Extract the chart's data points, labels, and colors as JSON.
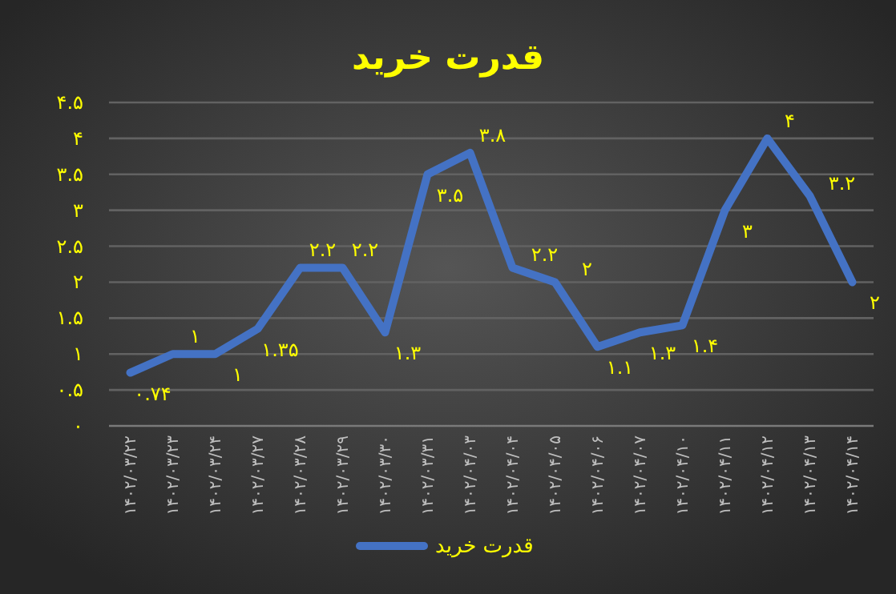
{
  "chart_data": {
    "type": "line",
    "title": "قدرت خرید",
    "categories": [
      "۱۴۰۲/۰۳/۲۲",
      "۱۴۰۲/۰۳/۲۳",
      "۱۴۰۲/۰۳/۲۴",
      "۱۴۰۲/۰۳/۲۷",
      "۱۴۰۲/۰۳/۲۸",
      "۱۴۰۲/۰۳/۲۹",
      "۱۴۰۲/۰۳/۳۰",
      "۱۴۰۲/۰۳/۳۱",
      "۱۴۰۲/۰۴/۰۳",
      "۱۴۰۲/۰۴/۰۴",
      "۱۴۰۲/۰۴/۰۵",
      "۱۴۰۲/۰۴/۰۶",
      "۱۴۰۲/۰۴/۰۷",
      "۱۴۰۲/۰۴/۱۰",
      "۱۴۰۲/۰۴/۱۱",
      "۱۴۰۲/۰۴/۱۲",
      "۱۴۰۲/۰۴/۱۳",
      "۱۴۰۲/۰۴/۱۴"
    ],
    "series": [
      {
        "name": "قدرت خرید",
        "color": "#4472c4",
        "values": [
          0.74,
          1,
          1,
          1.35,
          2.2,
          2.2,
          1.3,
          3.5,
          3.8,
          2.2,
          2,
          1.1,
          1.3,
          1.4,
          3,
          4,
          3.2,
          2
        ],
        "value_labels": [
          "۰.۷۴",
          "۱",
          "۱",
          "۱.۳۵",
          "۲.۲",
          "۲.۲",
          "۱.۳",
          "۳.۵",
          "۳.۸",
          "۲.۲",
          "۲",
          "۱.۱",
          "۱.۳",
          "۱.۴",
          "۳",
          "۴",
          "۳.۲",
          "۲"
        ]
      }
    ],
    "ylim": [
      0,
      4.5
    ],
    "yticks": [
      {
        "value": 0,
        "label": "۰"
      },
      {
        "value": 0.5,
        "label": "۰.۵"
      },
      {
        "value": 1,
        "label": "۱"
      },
      {
        "value": 1.5,
        "label": "۱.۵"
      },
      {
        "value": 2,
        "label": "۲"
      },
      {
        "value": 2.5,
        "label": "۲.۵"
      },
      {
        "value": 3,
        "label": "۳"
      },
      {
        "value": 3.5,
        "label": "۳.۵"
      },
      {
        "value": 4,
        "label": "۴"
      },
      {
        "value": 4.5,
        "label": "۴.۵"
      }
    ],
    "grid": "y",
    "legend": "bottom",
    "marker": "none",
    "line_style": "solid"
  }
}
